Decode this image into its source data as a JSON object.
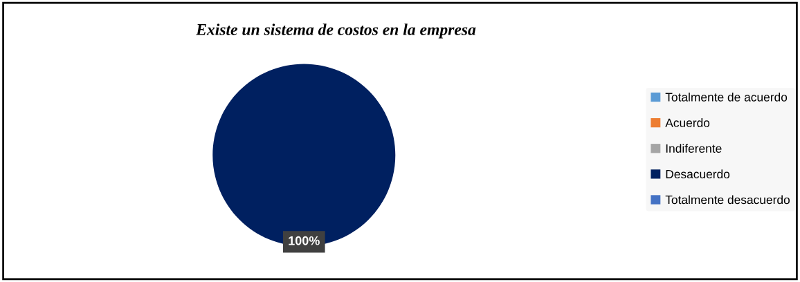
{
  "chart_data": {
    "type": "pie",
    "title": "Existe un sistema de costos en la empresa",
    "categories": [
      "Totalmente de acuerdo",
      "Acuerdo",
      "Indiferente",
      "Desacuerdo",
      "Totalmente desacuerdo"
    ],
    "values": [
      0,
      0,
      0,
      100,
      0
    ],
    "colors": [
      "#5b9bd5",
      "#ed7d31",
      "#a5a5a5",
      "#002060",
      "#4472c4"
    ],
    "value_labels": [
      null,
      null,
      null,
      "100%",
      null
    ],
    "legend": "right"
  }
}
